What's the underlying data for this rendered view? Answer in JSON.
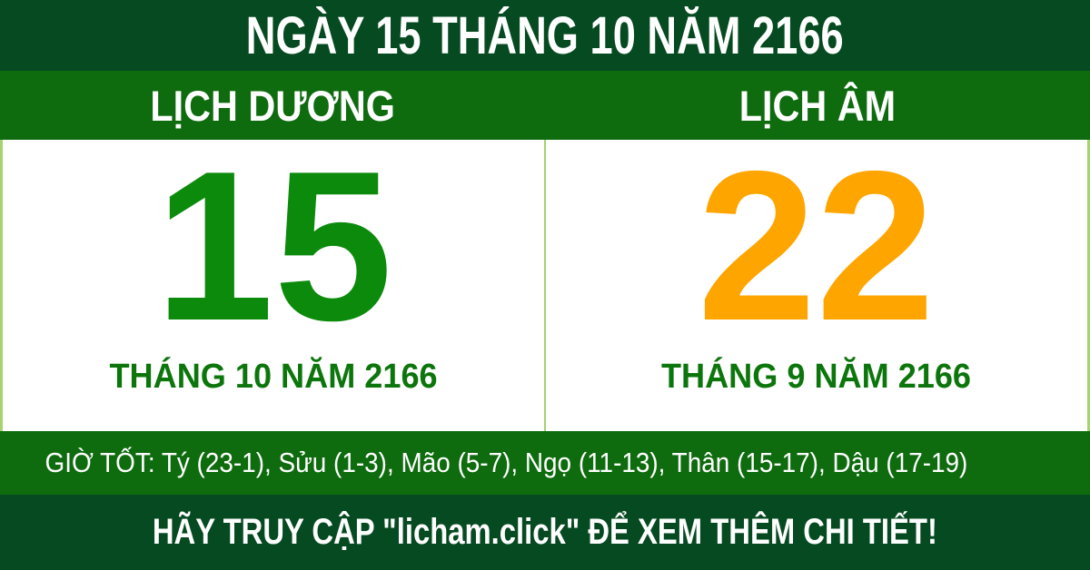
{
  "header": {
    "title": "NGÀY 15 THÁNG 10 NĂM 2166"
  },
  "solar": {
    "label": "LỊCH DƯƠNG",
    "day": "15",
    "month_year": "THÁNG 10 NĂM 2166"
  },
  "lunar": {
    "label": "LỊCH ÂM",
    "day": "22",
    "month_year": "THÁNG 9 NĂM 2166"
  },
  "good_hours": {
    "label": "GIỜ TỐT:",
    "hours": [
      "Tý (23-1)",
      "Sửu (1-3)",
      "Mão (5-7)",
      "Ngọ (11-13)",
      "Thân (15-17)",
      "Dậu (17-19)"
    ]
  },
  "footer": {
    "cta": "HÃY TRUY CẬP \"licham.click\" ĐỂ XEM THÊM CHI TIẾT!"
  },
  "colors": {
    "dark_green": "#064a21",
    "medium_green": "#0e6b0e",
    "solar_day_green": "#0b8a0b",
    "month_label_green": "#0c760c",
    "lunar_day_orange": "#ffa500",
    "divider_light_green": "#a5d36e",
    "text_white": "#ffffff"
  }
}
